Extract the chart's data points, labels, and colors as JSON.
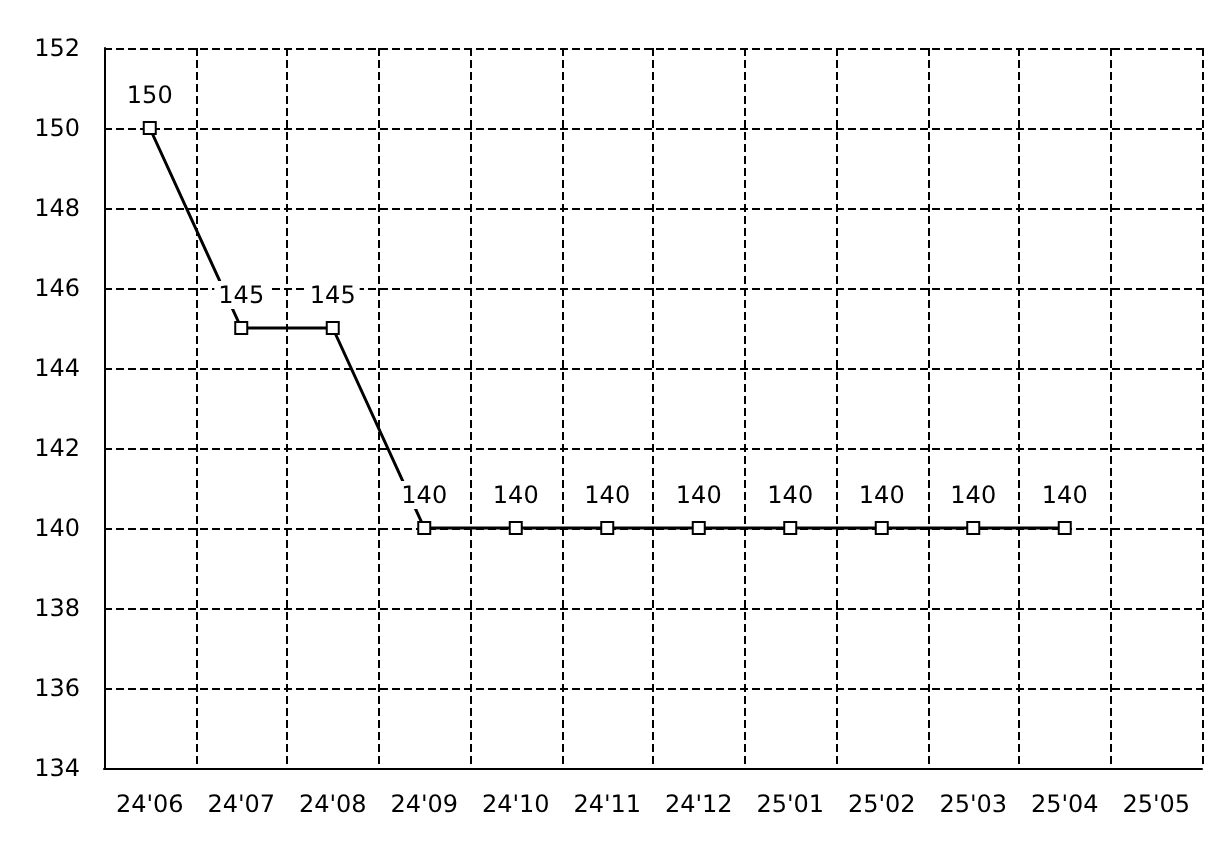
{
  "chart_data": {
    "type": "line",
    "categories": [
      "24'06",
      "24'07",
      "24'08",
      "24'09",
      "24'10",
      "24'11",
      "24'12",
      "25'01",
      "25'02",
      "25'03",
      "25'04",
      "25'05"
    ],
    "series": [
      {
        "color": "#000000",
        "values": [
          150,
          145,
          145,
          140,
          140,
          140,
          140,
          140,
          140,
          140,
          140,
          null
        ]
      }
    ],
    "ylim": [
      134,
      152
    ],
    "yticks": [
      134,
      136,
      138,
      140,
      142,
      144,
      146,
      148,
      150,
      152
    ],
    "grid": true,
    "marker": "square",
    "data_labels": true
  }
}
